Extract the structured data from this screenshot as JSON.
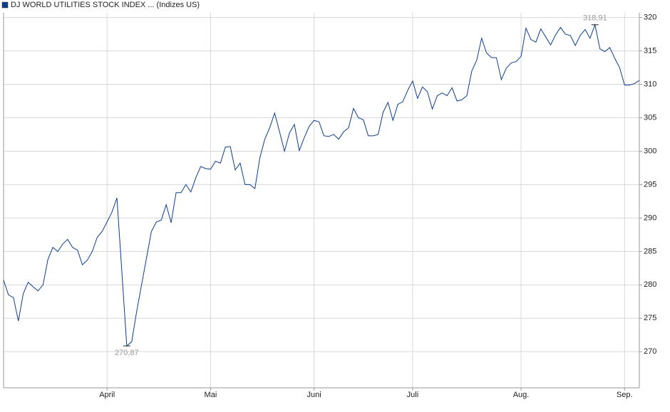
{
  "chart_data": {
    "type": "line",
    "title": "DJ WORLD UTILITIES STOCK INDEX ... (Indizes US)",
    "x": [
      0,
      1,
      2,
      3,
      4,
      5,
      6,
      7,
      8,
      9,
      10,
      11,
      12,
      13,
      14,
      15,
      16,
      17,
      18,
      19,
      20,
      21,
      22,
      23,
      24,
      25,
      26,
      27,
      28,
      29,
      30,
      31,
      32,
      33,
      34,
      35,
      36,
      37,
      38,
      39,
      40,
      41,
      42,
      43,
      44,
      45,
      46,
      47,
      48,
      49,
      50,
      51,
      52,
      53,
      54,
      55,
      56,
      57,
      58,
      59,
      60,
      61,
      62,
      63,
      64,
      65,
      66,
      67,
      68,
      69,
      70,
      71,
      72,
      73,
      74,
      75,
      76,
      77,
      78,
      79,
      80,
      81,
      82,
      83,
      84,
      85,
      86,
      87,
      88,
      89,
      90,
      91,
      92,
      93,
      94,
      95,
      96,
      97,
      98,
      99,
      100,
      101,
      102,
      103,
      104,
      105,
      106,
      107,
      108,
      109,
      110,
      111,
      112,
      113,
      114,
      115,
      116,
      117,
      118,
      119,
      120,
      121,
      122,
      123,
      124,
      125,
      126,
      127,
      128,
      129
    ],
    "series": [
      {
        "name": "DJ WORLD UTILITIES STOCK INDEX ... (Indizes US)",
        "color": "#0b3d91",
        "values": [
          280.7,
          278.5,
          278.1,
          274.6,
          278.7,
          280.4,
          279.7,
          279.1,
          280.0,
          283.8,
          285.6,
          285.0,
          286.1,
          286.8,
          285.6,
          285.2,
          283.0,
          283.7,
          285.0,
          287.1,
          288.0,
          289.4,
          290.9,
          293.0,
          282.0,
          270.87,
          271.5,
          276.0,
          280.0,
          284.0,
          288.0,
          289.4,
          289.7,
          292.0,
          289.3,
          293.8,
          293.8,
          295.0,
          293.9,
          296.0,
          297.7,
          297.4,
          297.3,
          298.5,
          298.2,
          300.6,
          300.7,
          297.2,
          298.2,
          295.0,
          295.0,
          294.4,
          299.0,
          301.8,
          303.5,
          305.7,
          302.9,
          300.0,
          302.7,
          304.0,
          300.1,
          302.0,
          303.7,
          304.6,
          304.4,
          302.3,
          302.2,
          302.5,
          301.8,
          302.9,
          303.5,
          306.4,
          305.0,
          304.7,
          302.3,
          302.3,
          302.5,
          305.8,
          307.3,
          304.6,
          307.0,
          307.4,
          309.1,
          310.5,
          307.9,
          309.6,
          308.9,
          306.3,
          308.3,
          308.7,
          308.3,
          309.5,
          307.5,
          307.7,
          308.3,
          312.0,
          313.6,
          316.9,
          314.7,
          314.0,
          314.0,
          310.7,
          312.4,
          313.2,
          313.4,
          314.2,
          318.4,
          316.7,
          316.3,
          318.3,
          317.1,
          315.9,
          317.4,
          318.5,
          317.5,
          317.3,
          315.8,
          317.3,
          318.2,
          316.9,
          318.91,
          315.3,
          314.9,
          315.5,
          313.9,
          312.5,
          309.9,
          309.9,
          310.1,
          310.6
        ]
      }
    ],
    "xlim": [
      0,
      129
    ],
    "xticks": [
      {
        "value": 21,
        "label": "April"
      },
      {
        "value": 42,
        "label": "Mai"
      },
      {
        "value": 63,
        "label": "Juni"
      },
      {
        "value": 83,
        "label": "Juli"
      },
      {
        "value": 105,
        "label": "Aug."
      },
      {
        "value": 126,
        "label": "Sep."
      }
    ],
    "ylim": [
      264.6,
      320.7
    ],
    "yticks": [
      270,
      275,
      280,
      285,
      290,
      295,
      300,
      305,
      310,
      315,
      320
    ],
    "grid": true,
    "annotations": [
      {
        "x": 25,
        "label": "270,87",
        "position": "below"
      },
      {
        "x": 120,
        "label": "318,91",
        "position": "above"
      }
    ]
  }
}
